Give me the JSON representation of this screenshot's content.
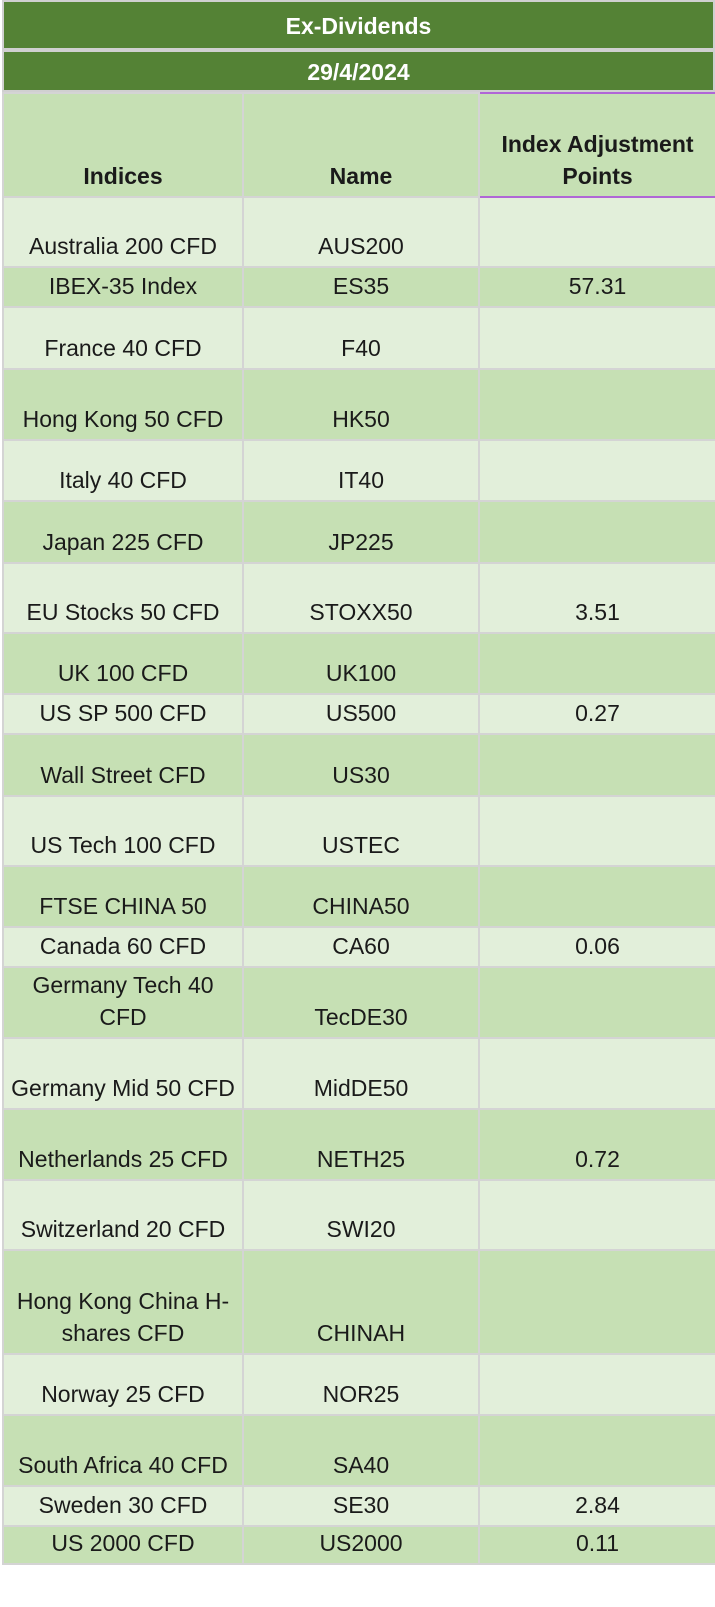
{
  "title": "Ex-Dividends",
  "date": "29/4/2024",
  "headers": {
    "indices": "Indices",
    "name": "Name",
    "adjustment": "Index Adjustment Points"
  },
  "rows": [
    {
      "index": "Australia 200 CFD",
      "name": "AUS200",
      "points": ""
    },
    {
      "index": "IBEX-35 Index",
      "name": "ES35",
      "points": "57.31"
    },
    {
      "index": "France 40 CFD",
      "name": "F40",
      "points": ""
    },
    {
      "index": "Hong Kong 50 CFD",
      "name": "HK50",
      "points": ""
    },
    {
      "index": "Italy 40 CFD",
      "name": "IT40",
      "points": ""
    },
    {
      "index": "Japan 225 CFD",
      "name": "JP225",
      "points": ""
    },
    {
      "index": "EU Stocks 50 CFD",
      "name": "STOXX50",
      "points": "3.51"
    },
    {
      "index": "UK 100 CFD",
      "name": "UK100",
      "points": ""
    },
    {
      "index": "US SP 500 CFD",
      "name": "US500",
      "points": "0.27"
    },
    {
      "index": "Wall Street CFD",
      "name": "US30",
      "points": ""
    },
    {
      "index": "US Tech 100 CFD",
      "name": "USTEC",
      "points": ""
    },
    {
      "index": "FTSE CHINA 50",
      "name": "CHINA50",
      "points": ""
    },
    {
      "index": "Canada 60 CFD",
      "name": "CA60",
      "points": "0.06"
    },
    {
      "index": "Germany Tech 40 CFD",
      "name": "TecDE30",
      "points": ""
    },
    {
      "index": "Germany Mid 50 CFD",
      "name": "MidDE50",
      "points": ""
    },
    {
      "index": "Netherlands 25 CFD",
      "name": "NETH25",
      "points": "0.72"
    },
    {
      "index": "Switzerland 20 CFD",
      "name": "SWI20",
      "points": ""
    },
    {
      "index": "Hong Kong China H-shares CFD",
      "name": "CHINAH",
      "points": ""
    },
    {
      "index": "Norway 25 CFD",
      "name": "NOR25",
      "points": ""
    },
    {
      "index": "South Africa 40 CFD",
      "name": "SA40",
      "points": ""
    },
    {
      "index": "Sweden 30 CFD",
      "name": "SE30",
      "points": "2.84"
    },
    {
      "index": "US 2000 CFD",
      "name": "US2000",
      "points": "0.11"
    }
  ]
}
